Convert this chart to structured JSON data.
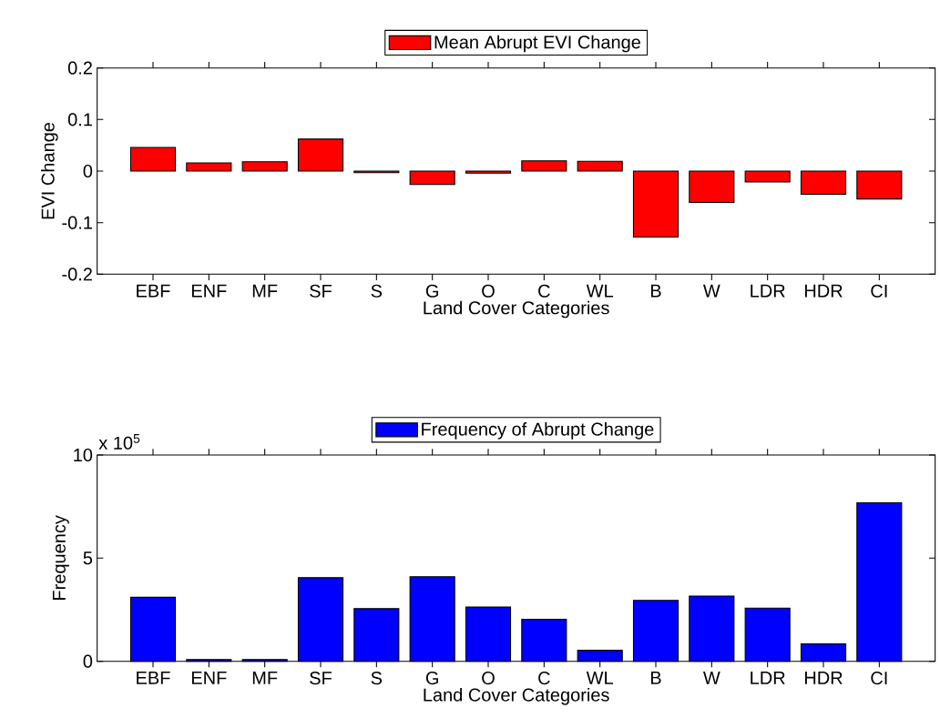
{
  "chart_data": [
    {
      "type": "bar",
      "xlabel": "Land Cover Categories",
      "ylabel": "EVI Change",
      "categories": [
        "EBF",
        "ENF",
        "MF",
        "SF",
        "S",
        "G",
        "O",
        "C",
        "WL",
        "B",
        "W",
        "LDR",
        "HDR",
        "CI"
      ],
      "series": [
        {
          "name": "Mean Abrupt EVI Change",
          "color": "#ff0000",
          "values": [
            0.046,
            0.016,
            0.018,
            0.062,
            -0.003,
            -0.026,
            -0.004,
            0.02,
            0.019,
            -0.128,
            -0.061,
            -0.021,
            -0.045,
            -0.054
          ]
        }
      ],
      "ylim": [
        -0.2,
        0.2
      ],
      "yticks": [
        -0.2,
        -0.1,
        0,
        0.1,
        0.2
      ],
      "legend": "top"
    },
    {
      "type": "bar",
      "xlabel": "Land Cover Categories",
      "ylabel": "Frequency",
      "annotations": [
        "x 10$^{5}$"
      ],
      "categories": [
        "EBF",
        "ENF",
        "MF",
        "SF",
        "S",
        "G",
        "O",
        "C",
        "WL",
        "B",
        "W",
        "LDR",
        "HDR",
        "CI"
      ],
      "series": [
        {
          "name": "Frequency of Abrupt Change",
          "color": "#0000ff",
          "values": [
            3.1,
            0.08,
            0.08,
            4.05,
            2.55,
            4.1,
            2.63,
            2.03,
            0.53,
            2.95,
            3.16,
            2.58,
            0.84,
            7.68
          ]
        }
      ],
      "ylim": [
        0,
        10
      ],
      "yticks": [
        0,
        5,
        10
      ],
      "legend": "top"
    }
  ]
}
